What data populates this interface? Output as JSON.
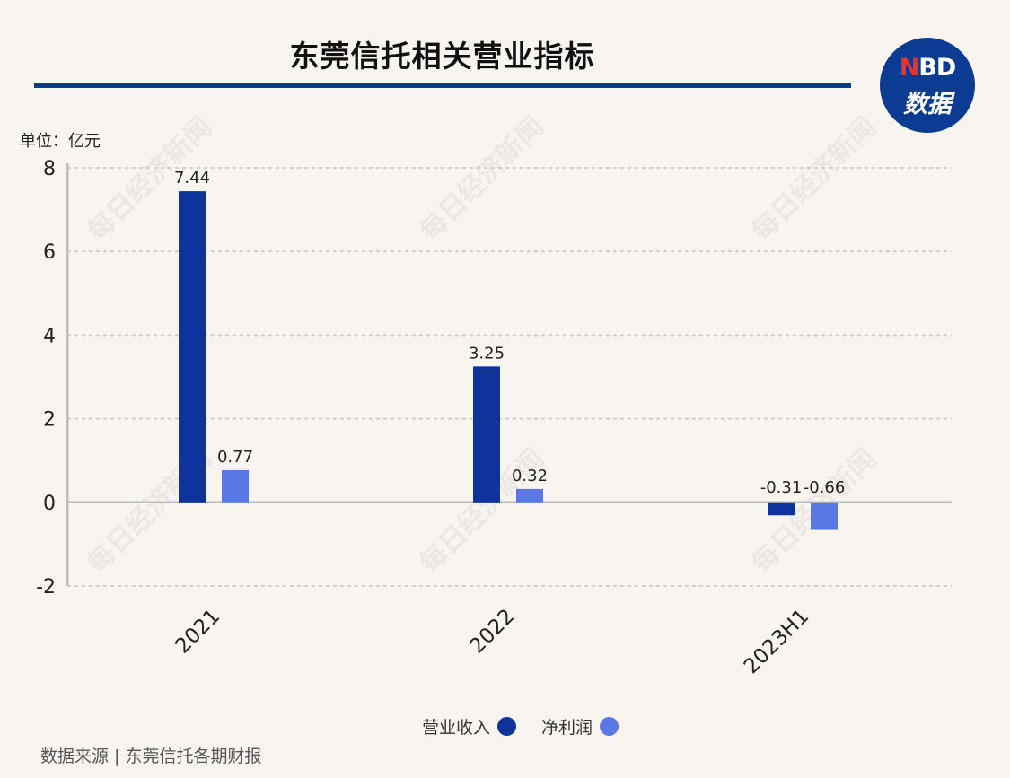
{
  "header": {
    "title": "东莞信托相关营业指标",
    "logo_line1_n": "N",
    "logo_line1_rest": "BD",
    "logo_line2": "数据"
  },
  "unit_label": "单位：亿元",
  "chart_data": {
    "type": "bar",
    "categories": [
      "2021",
      "2022",
      "2023H1"
    ],
    "series": [
      {
        "name": "营业收入",
        "values": [
          7.44,
          3.25,
          -0.31
        ],
        "color": "#0e349c"
      },
      {
        "name": "净利润",
        "values": [
          0.77,
          0.32,
          -0.66
        ],
        "color": "#5a78e4"
      }
    ],
    "data_labels": [
      [
        "7.44",
        "3.25",
        "-0.31"
      ],
      [
        "0.77",
        "0.32",
        "-0.66"
      ]
    ],
    "ylim": [
      -2,
      8
    ],
    "yticks": [
      "8",
      "6",
      "4",
      "2",
      "0",
      "-2"
    ],
    "ytick_values": [
      8,
      6,
      4,
      2,
      0,
      -2
    ],
    "grid": true,
    "legend_position": "bottom-center",
    "watermark": "每日经济新闻"
  },
  "footer": {
    "source": "数据来源 | 东莞信托各期财报"
  }
}
